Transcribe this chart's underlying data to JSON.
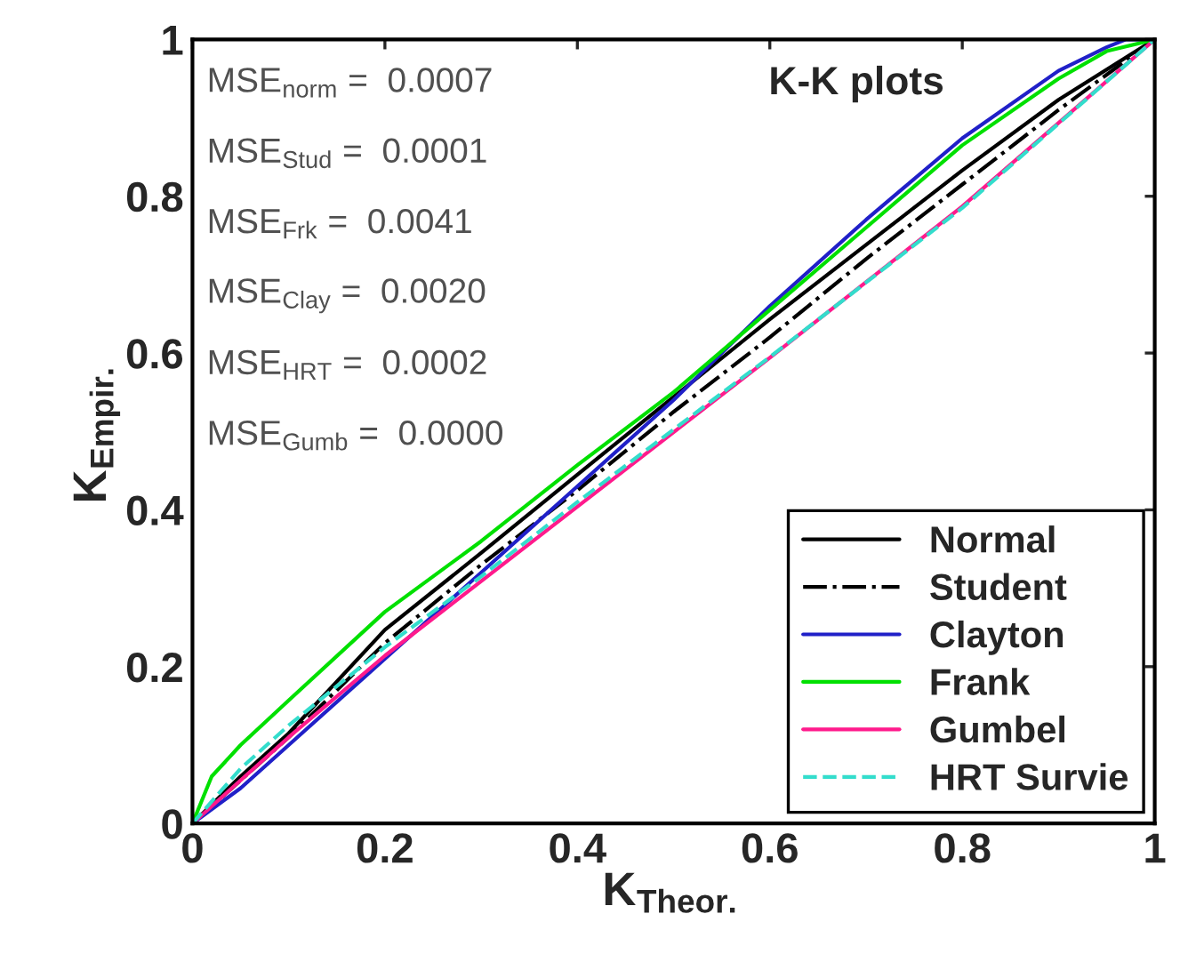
{
  "chart_data": {
    "type": "line",
    "title": "K-K plots",
    "xlabel": "K$_{Theor.}$",
    "ylabel": "K$_{Empir.}$",
    "xlim": [
      0,
      1
    ],
    "ylim": [
      0,
      1
    ],
    "xticks": [
      0,
      0.2,
      0.4,
      0.6,
      0.8,
      1
    ],
    "yticks": [
      0,
      0.2,
      0.4,
      0.6,
      0.8,
      1
    ],
    "grid": false,
    "legend": "bottom right",
    "annotations": [
      "MSE$_{norm}$ =  0.0007",
      "MSE$_{Stud}$ =  0.0001",
      "MSE$_{Frk}$ =  0.0041",
      "MSE$_{Clay}$ =  0.0020",
      "MSE$_{HRT}$ =  0.0002",
      "MSE$_{Gumb}$ =  0.0000"
    ],
    "series": [
      {
        "name": "Normal",
        "color": "#000000",
        "line_style": "solid",
        "x": [
          0,
          0.05,
          0.1,
          0.2,
          0.3,
          0.4,
          0.5,
          0.6,
          0.7,
          0.8,
          0.9,
          1
        ],
        "values": [
          0,
          0.06,
          0.115,
          0.247,
          0.345,
          0.445,
          0.544,
          0.643,
          0.738,
          0.833,
          0.923,
          1
        ]
      },
      {
        "name": "Student",
        "color": "#000000",
        "line_style": "dashdot",
        "x": [
          0,
          0.05,
          0.1,
          0.2,
          0.3,
          0.4,
          0.5,
          0.6,
          0.7,
          0.8,
          0.9,
          1
        ],
        "values": [
          0,
          0.055,
          0.11,
          0.23,
          0.33,
          0.425,
          0.525,
          0.62,
          0.72,
          0.815,
          0.91,
          1
        ]
      },
      {
        "name": "Clayton",
        "color": "#2020c8",
        "line_style": "solid",
        "x": [
          0,
          0.05,
          0.1,
          0.2,
          0.3,
          0.4,
          0.5,
          0.6,
          0.7,
          0.8,
          0.9,
          0.95,
          0.97,
          1
        ],
        "values": [
          0,
          0.045,
          0.1,
          0.21,
          0.32,
          0.43,
          0.54,
          0.66,
          0.77,
          0.874,
          0.96,
          0.99,
          1,
          1
        ]
      },
      {
        "name": "Frank",
        "color": "#00e000",
        "line_style": "solid",
        "x": [
          0,
          0.02,
          0.05,
          0.1,
          0.2,
          0.3,
          0.4,
          0.5,
          0.6,
          0.7,
          0.8,
          0.9,
          0.95,
          1
        ],
        "values": [
          0,
          0.06,
          0.1,
          0.157,
          0.27,
          0.36,
          0.457,
          0.55,
          0.655,
          0.76,
          0.865,
          0.95,
          0.985,
          1
        ]
      },
      {
        "name": "Gumbel",
        "color": "#ff1a8c",
        "line_style": "solid",
        "x": [
          0,
          0.1,
          0.2,
          0.4,
          0.6,
          0.8,
          1
        ],
        "values": [
          0,
          0.11,
          0.214,
          0.404,
          0.594,
          0.787,
          1
        ]
      },
      {
        "name": "HRT Survie",
        "color": "#33ddcc",
        "line_style": "dashed",
        "x": [
          0,
          0.05,
          0.1,
          0.2,
          0.3,
          0.4,
          0.6,
          0.8,
          1
        ],
        "values": [
          0,
          0.07,
          0.125,
          0.225,
          0.315,
          0.41,
          0.595,
          0.785,
          1
        ]
      }
    ]
  }
}
